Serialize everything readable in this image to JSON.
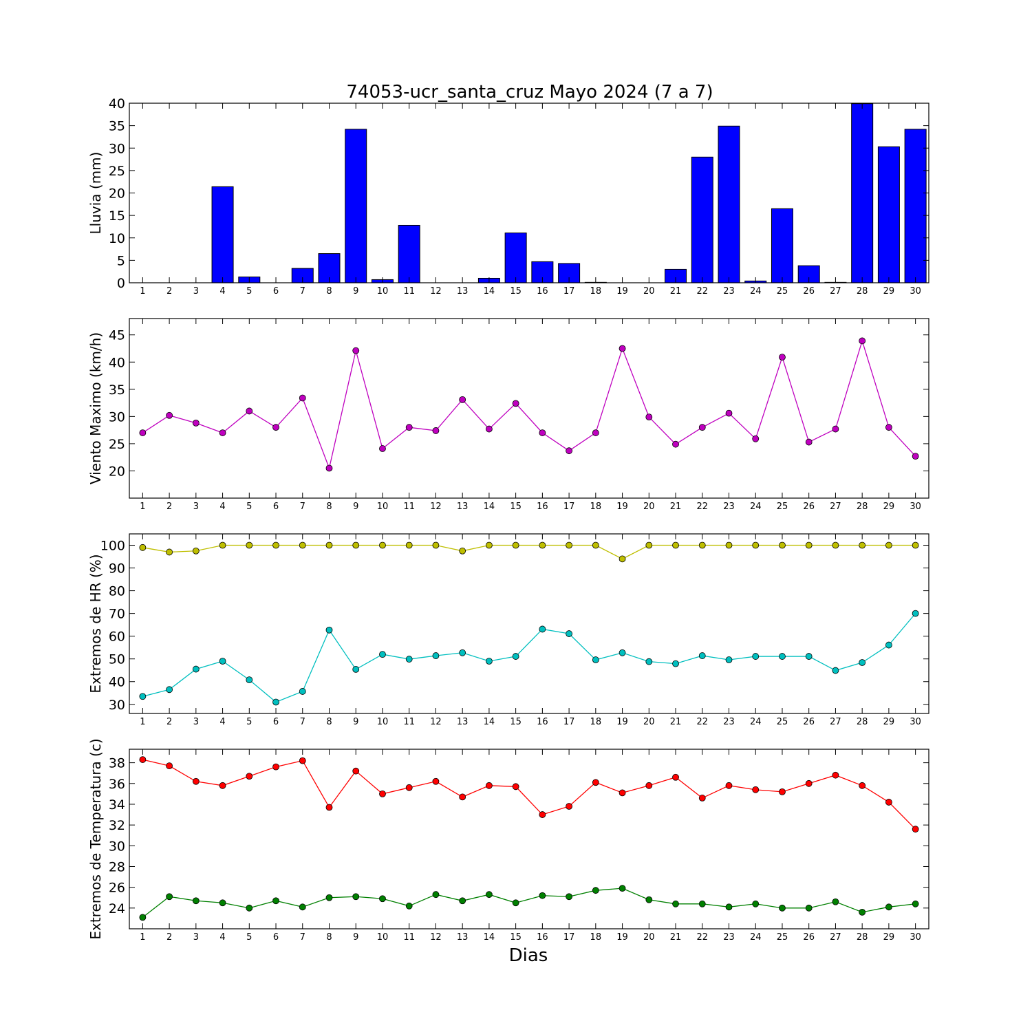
{
  "figure": {
    "title": "74053-ucr_santa_cruz Mayo 2024  (7 a 7)",
    "xlabel": "Dias"
  },
  "chart_data": [
    {
      "type": "bar",
      "id": "rain",
      "ylabel": "Lluvia (mm)",
      "ylim": [
        0,
        40
      ],
      "yticks": [
        0,
        5,
        10,
        15,
        20,
        25,
        30,
        35,
        40
      ],
      "xlim": [
        0.5,
        30.5
      ],
      "categories": [
        1,
        2,
        3,
        4,
        5,
        6,
        7,
        8,
        9,
        10,
        11,
        12,
        13,
        14,
        15,
        16,
        17,
        18,
        19,
        20,
        21,
        22,
        23,
        24,
        25,
        26,
        27,
        28,
        29,
        30
      ],
      "series": [
        {
          "color": "#0000ff",
          "values": [
            0,
            0,
            0,
            21.4,
            1.3,
            0,
            3.2,
            6.5,
            34.2,
            0.7,
            12.8,
            0,
            0,
            1.0,
            11.1,
            4.7,
            4.3,
            0.1,
            0,
            0,
            3.0,
            28.0,
            34.9,
            0.4,
            16.5,
            3.8,
            0.1,
            39.9,
            30.3,
            34.2
          ]
        }
      ],
      "grid": false
    },
    {
      "type": "line",
      "id": "wind",
      "ylabel": "Viento Maximo (km/h)",
      "ylim": [
        15,
        48
      ],
      "yticks": [
        20,
        25,
        30,
        35,
        40,
        45
      ],
      "xlim": [
        0.5,
        30.5
      ],
      "x": [
        1,
        2,
        3,
        4,
        5,
        6,
        7,
        8,
        9,
        10,
        11,
        12,
        13,
        14,
        15,
        16,
        17,
        18,
        19,
        20,
        21,
        22,
        23,
        24,
        25,
        26,
        27,
        28,
        29,
        30
      ],
      "series": [
        {
          "color": "#bf00bf",
          "values": [
            27.0,
            30.2,
            28.8,
            27.0,
            31.0,
            28.0,
            33.4,
            20.5,
            42.1,
            24.1,
            28.0,
            27.4,
            33.1,
            27.7,
            32.4,
            27.0,
            23.7,
            27.0,
            42.5,
            29.9,
            24.9,
            28.0,
            30.6,
            25.9,
            40.9,
            25.3,
            27.7,
            43.9,
            28.0,
            22.7
          ]
        }
      ],
      "grid": false
    },
    {
      "type": "line",
      "id": "hr",
      "ylabel": "Extremos de HR (%)",
      "ylim": [
        26,
        105
      ],
      "yticks": [
        30,
        40,
        50,
        60,
        70,
        80,
        90,
        100
      ],
      "xlim": [
        0.5,
        30.5
      ],
      "x": [
        1,
        2,
        3,
        4,
        5,
        6,
        7,
        8,
        9,
        10,
        11,
        12,
        13,
        14,
        15,
        16,
        17,
        18,
        19,
        20,
        21,
        22,
        23,
        24,
        25,
        26,
        27,
        28,
        29,
        30
      ],
      "series": [
        {
          "color": "#bfbf00",
          "values": [
            99,
            97,
            97.5,
            100,
            100,
            100,
            100,
            100,
            100,
            100,
            100,
            100,
            97.5,
            100,
            100,
            100,
            100,
            100,
            94,
            100,
            100,
            100,
            100,
            100,
            100,
            100,
            100,
            100,
            100,
            100
          ]
        },
        {
          "color": "#00bfbf",
          "values": [
            33.5,
            36.5,
            45.5,
            49,
            40.8,
            31,
            35.7,
            62.7,
            45.4,
            52,
            49.9,
            51.4,
            52.7,
            49,
            51.1,
            63.1,
            61.1,
            49.6,
            52.7,
            48.8,
            47.9,
            51.4,
            49.6,
            51.1,
            51.1,
            51.1,
            44.9,
            48.4,
            56.1,
            70
          ]
        }
      ],
      "grid": false
    },
    {
      "type": "line",
      "id": "temp",
      "ylabel": "Extremos de Temperatura (c)",
      "ylim": [
        22,
        39.3
      ],
      "yticks": [
        24,
        26,
        28,
        30,
        32,
        34,
        36,
        38
      ],
      "xlim": [
        0.5,
        30.5
      ],
      "x": [
        1,
        2,
        3,
        4,
        5,
        6,
        7,
        8,
        9,
        10,
        11,
        12,
        13,
        14,
        15,
        16,
        17,
        18,
        19,
        20,
        21,
        22,
        23,
        24,
        25,
        26,
        27,
        28,
        29,
        30
      ],
      "series": [
        {
          "color": "#ff0000",
          "values": [
            38.3,
            37.7,
            36.2,
            35.8,
            36.7,
            37.6,
            38.2,
            33.7,
            37.2,
            35.0,
            35.6,
            36.2,
            34.7,
            35.8,
            35.7,
            33.0,
            33.8,
            36.1,
            35.1,
            35.8,
            36.6,
            34.6,
            35.8,
            35.4,
            35.2,
            36.0,
            36.8,
            35.8,
            34.2,
            31.6
          ]
        },
        {
          "color": "#008000",
          "values": [
            23.1,
            25.1,
            24.7,
            24.5,
            24.0,
            24.7,
            24.1,
            25.0,
            25.1,
            24.9,
            24.2,
            25.3,
            24.7,
            25.3,
            24.5,
            25.2,
            25.1,
            25.7,
            25.9,
            24.8,
            24.4,
            24.4,
            24.1,
            24.4,
            24.0,
            24.0,
            24.6,
            23.6,
            24.1,
            24.4
          ]
        }
      ],
      "grid": false
    }
  ]
}
